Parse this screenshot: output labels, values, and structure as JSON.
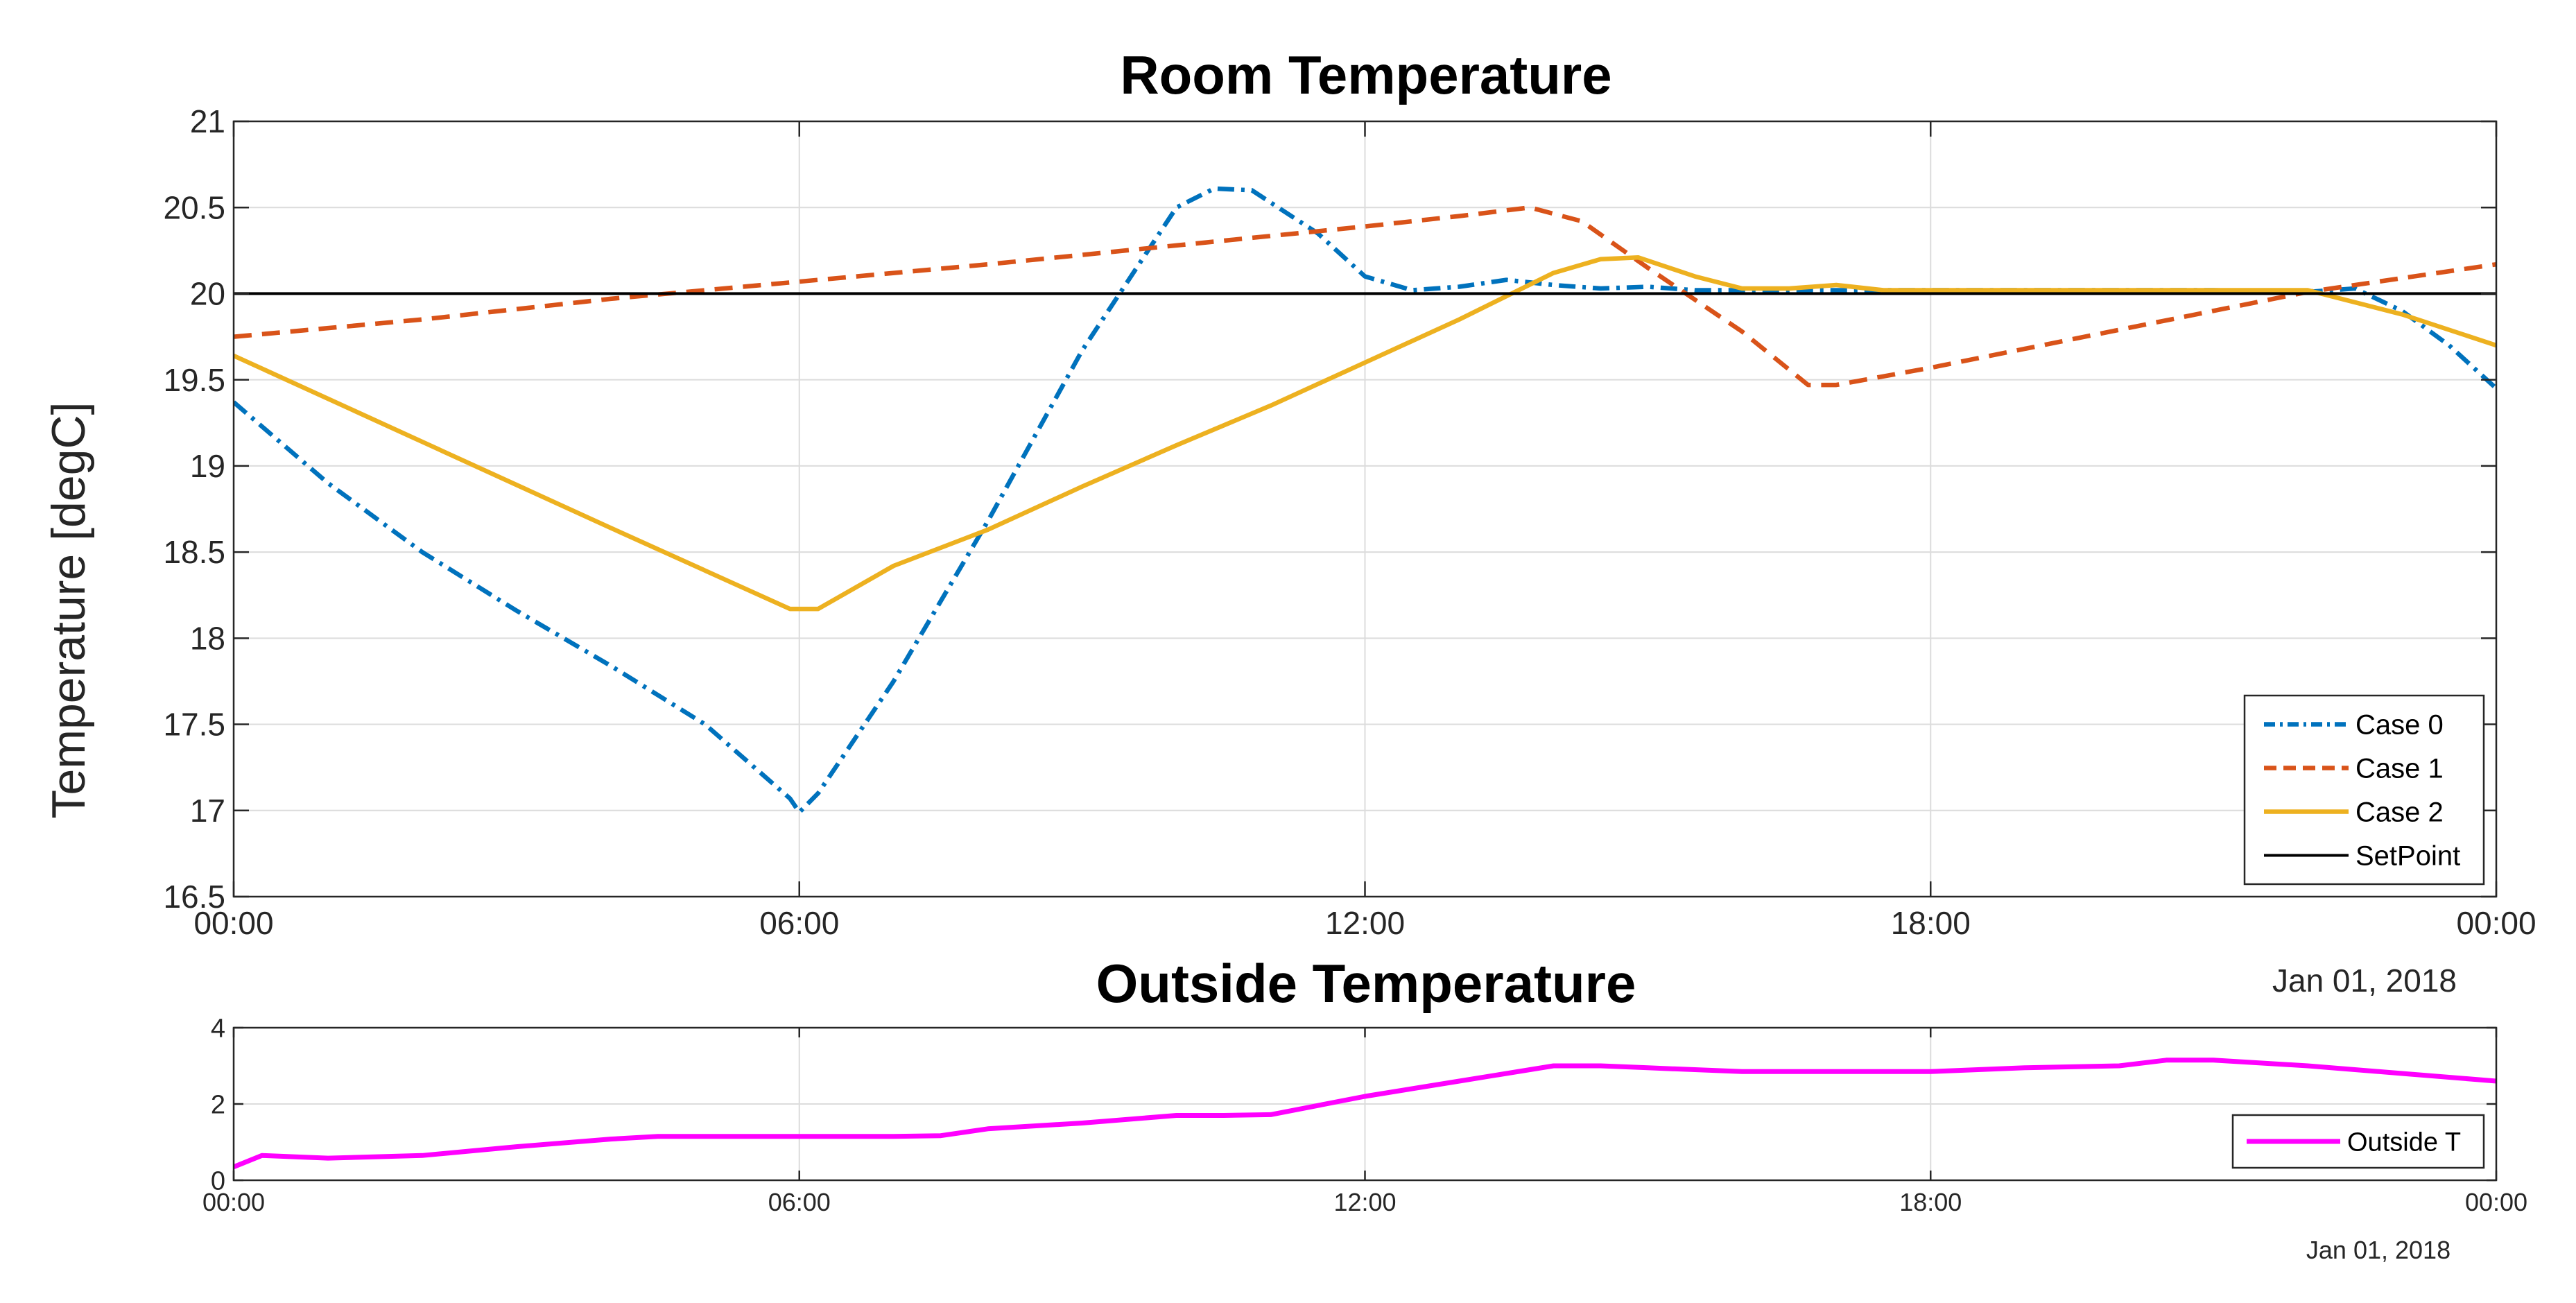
{
  "chart_data": [
    {
      "type": "line",
      "title": "Room Temperature",
      "ylabel": "Temperature [degC]",
      "xlabel": "",
      "date_label": "Jan 01, 2018",
      "x_ticks": [
        "00:00",
        "06:00",
        "12:00",
        "18:00",
        "00:00"
      ],
      "x_range_hours": [
        0,
        24
      ],
      "ylim": [
        16.5,
        21
      ],
      "y_ticks": [
        "16.5",
        "17",
        "17.5",
        "18",
        "18.5",
        "19",
        "19.5",
        "20",
        "20.5",
        "21"
      ],
      "grid": true,
      "legend_position": "bottom-right",
      "series": [
        {
          "name": "Case 0",
          "color": "#0072BD",
          "style": "dashdot",
          "x": [
            0,
            1,
            2,
            3,
            4,
            5,
            5.9,
            6.0,
            6.2,
            7,
            8,
            9,
            10,
            10.4,
            10.8,
            11.5,
            12,
            12.5,
            13,
            13.5,
            14,
            14.5,
            15,
            15.5,
            16,
            17,
            18,
            19,
            20,
            21,
            22,
            22.5,
            23,
            23.5,
            24
          ],
          "y": [
            19.37,
            18.9,
            18.5,
            18.16,
            17.84,
            17.5,
            17.07,
            16.99,
            17.1,
            17.75,
            18.68,
            19.67,
            20.5,
            20.61,
            20.6,
            20.35,
            20.1,
            20.02,
            20.04,
            20.08,
            20.05,
            20.03,
            20.04,
            20.02,
            20.02,
            20.02,
            20.02,
            20.02,
            20.02,
            20.02,
            20.01,
            20.03,
            19.9,
            19.7,
            19.45
          ]
        },
        {
          "name": "Case 1",
          "color": "#D95319",
          "style": "dashed",
          "x": [
            0,
            2,
            4,
            6,
            8,
            10,
            12,
            13,
            13.75,
            14.3,
            15,
            16,
            16.7,
            17,
            17.3,
            18,
            20,
            22,
            24
          ],
          "y": [
            19.75,
            19.85,
            19.97,
            20.07,
            20.17,
            20.28,
            20.39,
            20.45,
            20.5,
            20.42,
            20.15,
            19.78,
            19.47,
            19.47,
            19.5,
            19.57,
            19.79,
            20.01,
            20.17
          ]
        },
        {
          "name": "Case 2",
          "color": "#EDB120",
          "style": "solid",
          "x": [
            0,
            2,
            4,
            5.9,
            6.2,
            7,
            8,
            9,
            10,
            11,
            12,
            13,
            14,
            14.5,
            14.9,
            15.5,
            16,
            16.5,
            17,
            17.5,
            18,
            20,
            22,
            23,
            24
          ],
          "y": [
            19.64,
            19.14,
            18.64,
            18.17,
            18.17,
            18.42,
            18.63,
            18.88,
            19.12,
            19.35,
            19.6,
            19.85,
            20.12,
            20.2,
            20.21,
            20.1,
            20.03,
            20.03,
            20.05,
            20.02,
            20.02,
            20.02,
            20.02,
            19.88,
            19.7
          ]
        },
        {
          "name": "SetPoint",
          "color": "#000000",
          "style": "solid",
          "x": [
            0,
            24
          ],
          "y": [
            20,
            20
          ]
        }
      ]
    },
    {
      "type": "line",
      "title": "Outside Temperature",
      "xlabel": "",
      "ylabel": "",
      "date_label": "Jan 01, 2018",
      "x_ticks": [
        "00:00",
        "06:00",
        "12:00",
        "18:00",
        "00:00"
      ],
      "x_range_hours": [
        0,
        24
      ],
      "ylim": [
        0,
        4
      ],
      "y_ticks": [
        "0",
        "2",
        "4"
      ],
      "grid": true,
      "legend_position": "bottom-right",
      "series": [
        {
          "name": "Outside T",
          "color": "#FF00FF",
          "style": "solid",
          "x": [
            0,
            0.3,
            1,
            2,
            3,
            4,
            4.5,
            5,
            6,
            7,
            7.5,
            8,
            9,
            10,
            10.5,
            11,
            12,
            13,
            14,
            14.5,
            15,
            16,
            17,
            18,
            19,
            20,
            20.5,
            21,
            22,
            23,
            24
          ],
          "y": [
            0.35,
            0.65,
            0.58,
            0.65,
            0.88,
            1.08,
            1.15,
            1.15,
            1.15,
            1.15,
            1.17,
            1.35,
            1.5,
            1.7,
            1.7,
            1.72,
            2.2,
            2.6,
            3.0,
            3.0,
            2.95,
            2.85,
            2.85,
            2.85,
            2.95,
            3.0,
            3.15,
            3.15,
            3.0,
            2.8,
            2.6
          ]
        }
      ]
    }
  ]
}
